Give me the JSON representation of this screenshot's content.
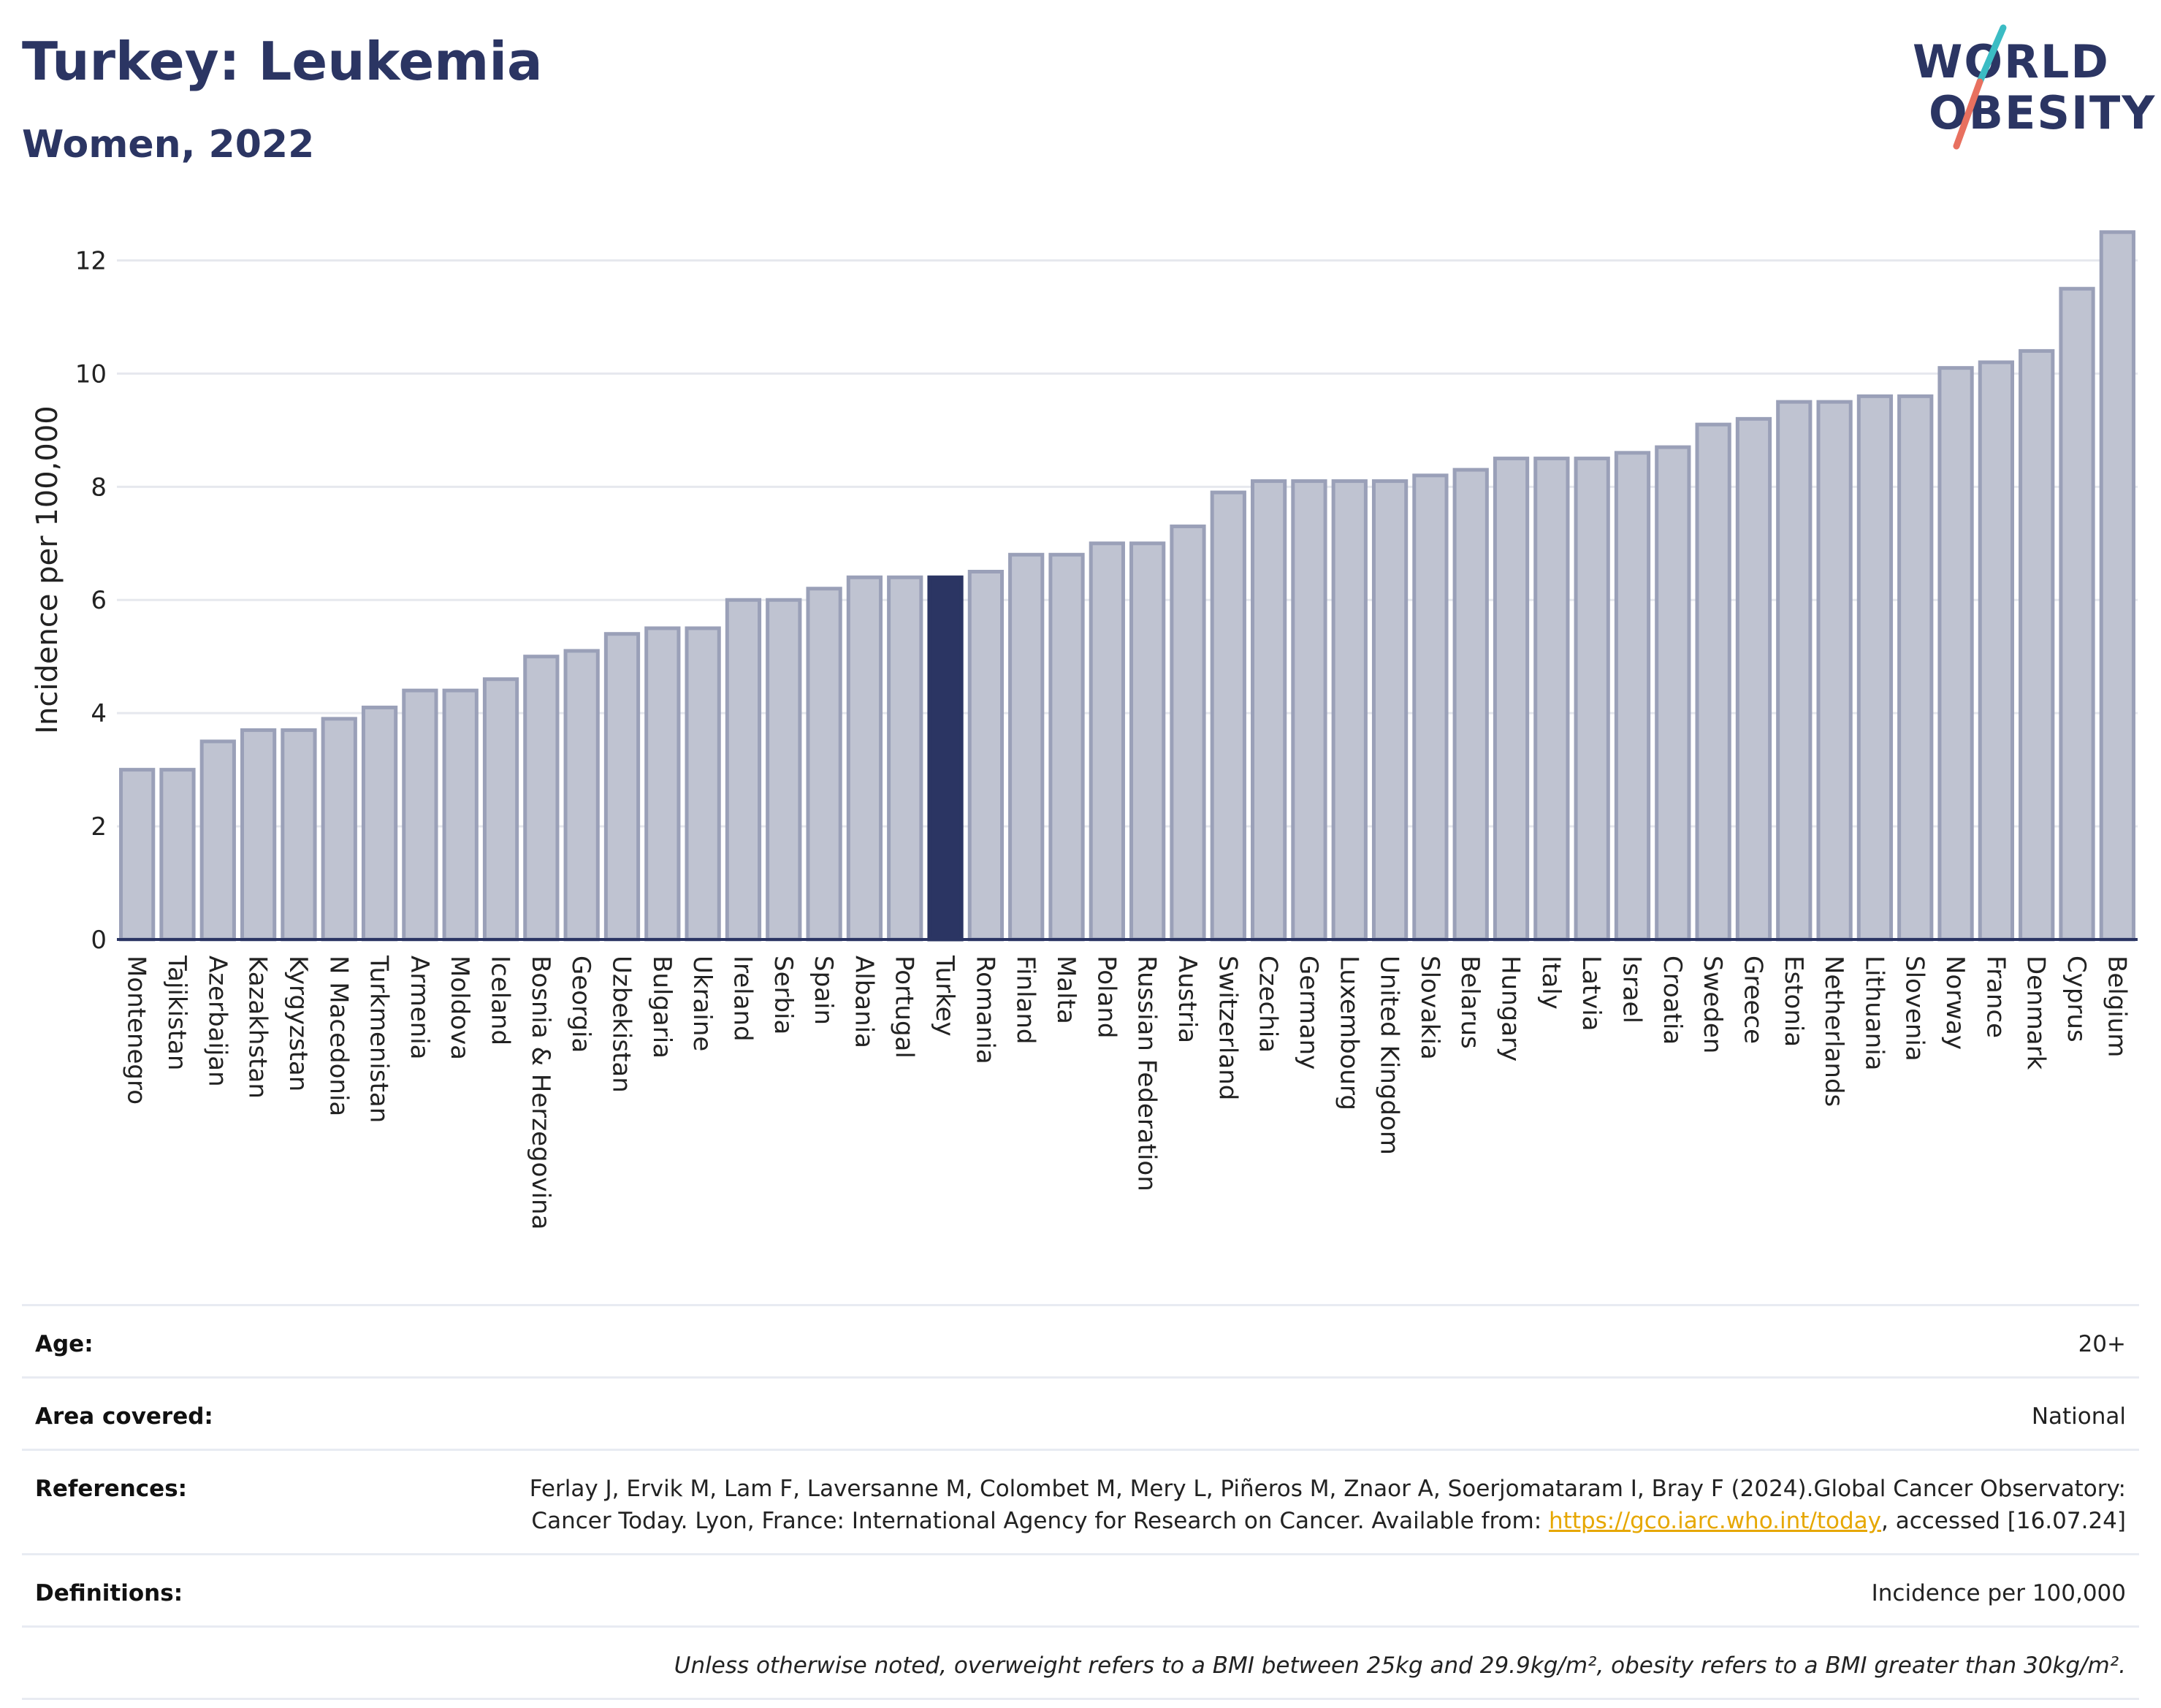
{
  "header": {
    "title": "Turkey: Leukemia",
    "subtitle": "Women, 2022",
    "logo_text_line1": "WORLD",
    "logo_text_line2": "OBESITY"
  },
  "colors": {
    "bar_fill": "#bfc3d1",
    "bar_stroke": "#9aa0b8",
    "highlight": "#2b3563",
    "grid": "#e6e8ee",
    "logo_teal": "#3bbcc4",
    "logo_coral": "#e8705f"
  },
  "chart_data": {
    "type": "bar",
    "title": "Turkey: Leukemia",
    "subtitle": "Women, 2022",
    "xlabel": "",
    "ylabel": "Incidence per 100,000",
    "ylim": [
      0,
      12.6
    ],
    "yticks": [
      0,
      2,
      4,
      6,
      8,
      10,
      12
    ],
    "grid": true,
    "highlight_category": "Turkey",
    "categories": [
      "Montenegro",
      "Tajikistan",
      "Azerbaijan",
      "Kazakhstan",
      "Kyrgyzstan",
      "N Macedonia",
      "Turkmenistan",
      "Armenia",
      "Moldova",
      "Iceland",
      "Bosnia & Herzegovina",
      "Georgia",
      "Uzbekistan",
      "Bulgaria",
      "Ukraine",
      "Ireland",
      "Serbia",
      "Spain",
      "Albania",
      "Portugal",
      "Turkey",
      "Romania",
      "Finland",
      "Malta",
      "Poland",
      "Russian Federation",
      "Austria",
      "Switzerland",
      "Czechia",
      "Germany",
      "Luxembourg",
      "United Kingdom",
      "Slovakia",
      "Belarus",
      "Hungary",
      "Italy",
      "Latvia",
      "Israel",
      "Croatia",
      "Sweden",
      "Greece",
      "Estonia",
      "Netherlands",
      "Lithuania",
      "Slovenia",
      "Norway",
      "France",
      "Denmark",
      "Cyprus",
      "Belgium"
    ],
    "values": [
      3.0,
      3.0,
      3.5,
      3.7,
      3.7,
      3.9,
      4.1,
      4.4,
      4.4,
      4.6,
      5.0,
      5.1,
      5.4,
      5.5,
      5.5,
      6.0,
      6.0,
      6.2,
      6.4,
      6.4,
      6.4,
      6.5,
      6.8,
      6.8,
      7.0,
      7.0,
      7.3,
      7.9,
      8.1,
      8.1,
      8.1,
      8.1,
      8.2,
      8.3,
      8.5,
      8.5,
      8.5,
      8.6,
      8.7,
      9.1,
      9.2,
      9.5,
      9.5,
      9.6,
      9.6,
      10.1,
      10.2,
      10.4,
      11.5,
      12.5
    ]
  },
  "info": {
    "age_label": "Age:",
    "age_value": "20+",
    "area_label": "Area covered:",
    "area_value": "National",
    "references_label": "References:",
    "references_text_1": "Ferlay J, Ervik M, Lam F, Laversanne M, Colombet M, Mery L, Piñeros M, Znaor A, Soerjomataram I, Bray F (2024).Global Cancer Observatory: Cancer Today. Lyon, France: International Agency for Research on Cancer. Available from: ",
    "references_link": "https://gco.iarc.who.int/today",
    "references_text_2": ", accessed [16.07.24]",
    "definitions_label": "Definitions:",
    "definitions_value": "Incidence per 100,000",
    "note": "Unless otherwise noted, overweight refers to a BMI between 25kg and 29.9kg/m², obesity refers to a BMI greater than 30kg/m²."
  }
}
